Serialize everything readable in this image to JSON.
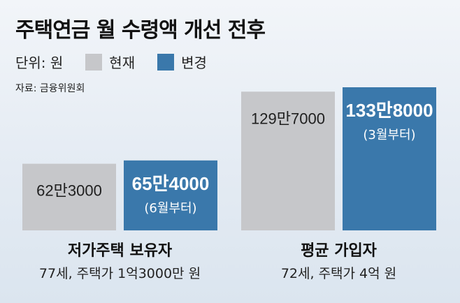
{
  "title": "주택연금 월 수령액 개선 전후",
  "unit_label": "단위: 원",
  "source": "자료: 금융위원회",
  "colors": {
    "current": "#c6c7ca",
    "changed": "#3a78ab",
    "background": "#e4ebf3"
  },
  "chart_data": {
    "type": "bar",
    "title": "주택연금 월 수령액 개선 전후",
    "unit": "원",
    "categories": [
      "저가주택 보유자",
      "평균 가입자"
    ],
    "category_sublabels": [
      "77세, 주택가 1억3000만 원",
      "72세, 주택가 4억 원"
    ],
    "series": [
      {
        "name": "현재",
        "values": [
          623000,
          1297000
        ],
        "labels": [
          "62만3000",
          "129만7000"
        ],
        "notes": [
          "",
          ""
        ]
      },
      {
        "name": "변경",
        "values": [
          654000,
          1338000
        ],
        "labels": [
          "65만4000",
          "133만8000"
        ],
        "notes": [
          "(6월부터)",
          "(3월부터)"
        ]
      }
    ],
    "legend_position": "top-left",
    "grid": false
  }
}
